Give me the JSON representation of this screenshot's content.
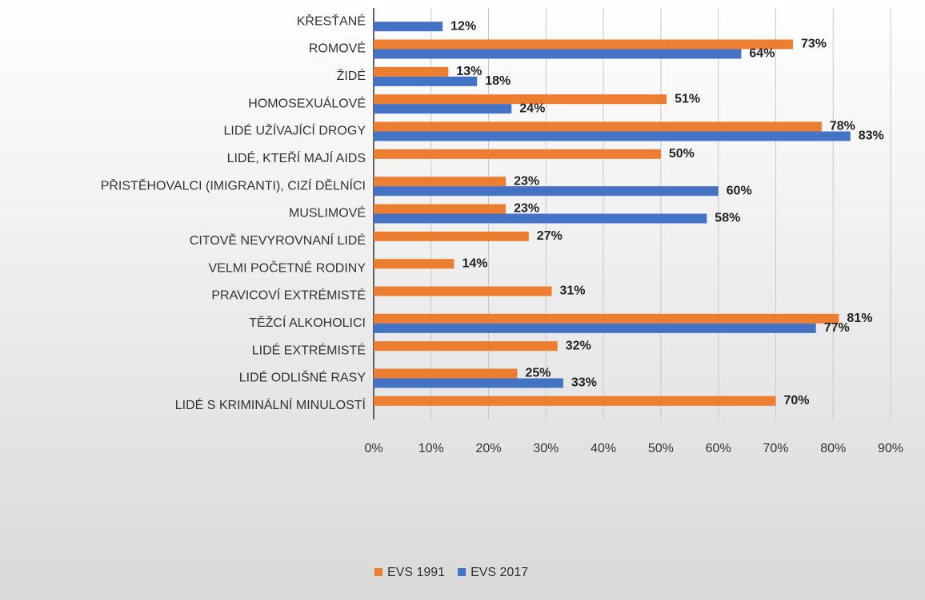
{
  "chart_data": {
    "type": "bar",
    "orientation": "horizontal",
    "categories": [
      "KŘESŤANÉ",
      "ROMOVÉ",
      "ŽIDÉ",
      "HOMOSEXUÁLOVÉ",
      "LIDÉ UŽÍVAJÍCÍ DROGY",
      "LIDÉ, KTEŘÍ MAJÍ AIDS",
      "PŘISTĚHOVALCI (IMIGRANTI), CIZÍ DĚLNÍCI",
      "MUSLIMOVÉ",
      "CITOVĚ NEVYROVNANÍ LIDÉ",
      "VELMI POČETNÉ RODINY",
      "PRAVICOVÍ EXTRÉMISTÉ",
      "TĚŽCÍ ALKOHOLICI",
      "LIDÉ EXTRÉMISTÉ",
      "LIDÉ ODLIŠNÉ RASY",
      "LIDÉ S KRIMINÁLNÍ MINULOSTÍ"
    ],
    "series": [
      {
        "name": "EVS 1991",
        "color": "#ed7d31",
        "values": [
          null,
          73,
          13,
          51,
          78,
          50,
          23,
          23,
          27,
          14,
          31,
          81,
          32,
          25,
          70
        ],
        "value_labels": [
          null,
          "73%",
          "13%",
          "51%",
          "78%",
          "50%",
          "23%",
          "23%",
          "27%",
          "14%",
          "31%",
          "81%",
          "32%",
          "25%",
          "70%"
        ]
      },
      {
        "name": "EVS 2017",
        "color": "#4472c4",
        "values": [
          12,
          64,
          18,
          24,
          83,
          null,
          60,
          58,
          null,
          null,
          null,
          77,
          null,
          33,
          null
        ],
        "value_labels": [
          "12%",
          "64%",
          "18%",
          "24%",
          "83%",
          null,
          "60%",
          "58%",
          null,
          null,
          null,
          "77%",
          null,
          "33%",
          null
        ]
      }
    ],
    "xlim": [
      0,
      90
    ],
    "xticks": [
      {
        "value": 0,
        "label": "0%"
      },
      {
        "value": 10,
        "label": "10%"
      },
      {
        "value": 20,
        "label": "20%"
      },
      {
        "value": 30,
        "label": "30%"
      },
      {
        "value": 40,
        "label": "40%"
      },
      {
        "value": 50,
        "label": "50%"
      },
      {
        "value": 60,
        "label": "60%"
      },
      {
        "value": 70,
        "label": "70%"
      },
      {
        "value": 80,
        "label": "80%"
      },
      {
        "value": 90,
        "label": "90%"
      }
    ],
    "grid": true,
    "legend": "bottom"
  }
}
